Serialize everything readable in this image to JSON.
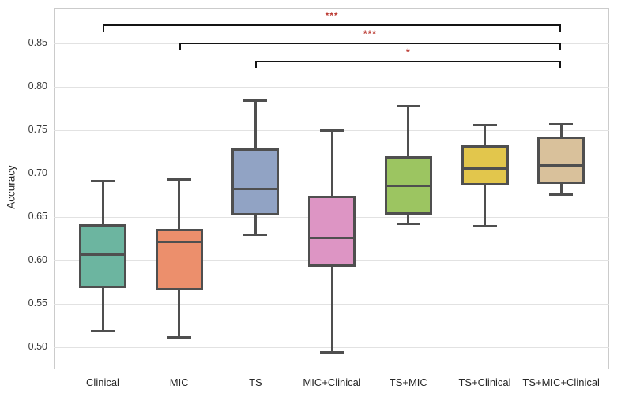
{
  "figure": {
    "ylabel": "Accuracy"
  },
  "chart_data": {
    "type": "box",
    "title": "",
    "xlabel": "",
    "ylabel": "Accuracy",
    "ylim": [
      0.474,
      0.891
    ],
    "yticks": [
      0.5,
      0.55,
      0.6,
      0.65,
      0.7,
      0.75,
      0.8,
      0.85
    ],
    "grid": "horizontal",
    "legend": "none",
    "categories": [
      "Clinical",
      "MIC",
      "TS",
      "MIC+Clinical",
      "TS+MIC",
      "TS+Clinical",
      "TS+MIC+Clinical"
    ],
    "series": [
      {
        "label": "Clinical",
        "color": "#6cb5a0",
        "whisker_low": 0.519,
        "q1": 0.568,
        "median": 0.607,
        "q3": 0.642,
        "whisker_high": 0.692
      },
      {
        "label": "MIC",
        "color": "#ec8f6c",
        "whisker_low": 0.512,
        "q1": 0.565,
        "median": 0.622,
        "q3": 0.636,
        "whisker_high": 0.694
      },
      {
        "label": "TS",
        "color": "#91a3c4",
        "whisker_low": 0.63,
        "q1": 0.652,
        "median": 0.683,
        "q3": 0.729,
        "whisker_high": 0.785
      },
      {
        "label": "MIC+Clinical",
        "color": "#dd95c4",
        "whisker_low": 0.495,
        "q1": 0.593,
        "median": 0.626,
        "q3": 0.675,
        "whisker_high": 0.75
      },
      {
        "label": "TS+MIC",
        "color": "#9cc561",
        "whisker_low": 0.643,
        "q1": 0.653,
        "median": 0.686,
        "q3": 0.72,
        "whisker_high": 0.778
      },
      {
        "label": "TS+Clinical",
        "color": "#e2c64c",
        "whisker_low": 0.64,
        "q1": 0.686,
        "median": 0.706,
        "q3": 0.733,
        "whisker_high": 0.756
      },
      {
        "label": "TS+MIC+Clinical",
        "color": "#d9c19b",
        "whisker_low": 0.676,
        "q1": 0.688,
        "median": 0.71,
        "q3": 0.743,
        "whisker_high": 0.757
      }
    ],
    "annotations": [
      {
        "group1": "Clinical",
        "group2": "TS+MIC+Clinical",
        "label": "***",
        "row": 0
      },
      {
        "group1": "MIC",
        "group2": "TS+MIC+Clinical",
        "label": "***",
        "row": 1
      },
      {
        "group1": "TS",
        "group2": "TS+MIC+Clinical",
        "label": "*",
        "row": 2
      }
    ]
  },
  "style": {
    "star_color": "#bb3b33",
    "box_edge_color": "#4f4f4f",
    "bracket_color": "#141414",
    "grid_color": "#e2e2e2",
    "plot_border_color": "#cbcbcb",
    "tick_label_color": "#3a3a3a",
    "background": "#ffffff"
  }
}
